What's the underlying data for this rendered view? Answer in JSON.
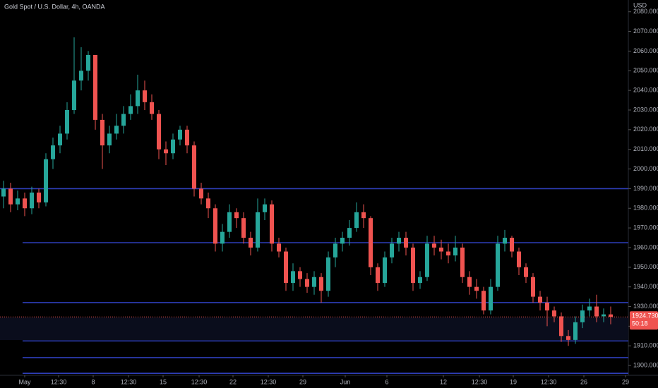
{
  "chart_data": {
    "type": "candlestick",
    "title": "Gold Spot / U.S. Dollar, 4h, OANDA",
    "y_axis_unit": "USD",
    "up_color": "#26a69a",
    "down_color": "#ef5350",
    "level_color": "#2e3eb8",
    "ylim": [
      1895,
      2086
    ],
    "xlim": [
      0,
      89
    ],
    "yticks": [
      {
        "value": 1900,
        "label": "1900.000"
      },
      {
        "value": 1910,
        "label": "1910.000"
      },
      {
        "value": 1920,
        "label": "1920.000"
      },
      {
        "value": 1930,
        "label": "1930.000"
      },
      {
        "value": 1940,
        "label": "1940.000"
      },
      {
        "value": 1950,
        "label": "1950.000"
      },
      {
        "value": 1960,
        "label": "1960.000"
      },
      {
        "value": 1970,
        "label": "1970.000"
      },
      {
        "value": 1980,
        "label": "1980.000"
      },
      {
        "value": 1990,
        "label": "1990.000"
      },
      {
        "value": 2000,
        "label": "2000.000"
      },
      {
        "value": 2010,
        "label": "2010.000"
      },
      {
        "value": 2020,
        "label": "2020.000"
      },
      {
        "value": 2030,
        "label": "2030.000"
      },
      {
        "value": 2040,
        "label": "2040.000"
      },
      {
        "value": 2050,
        "label": "2050.000"
      },
      {
        "value": 2060,
        "label": "2060.000"
      },
      {
        "value": 2070,
        "label": "2070.000"
      },
      {
        "value": 2080,
        "label": "2080.000"
      }
    ],
    "xticks": [
      {
        "value": 3.5,
        "label": "May"
      },
      {
        "value": 8.3,
        "label": "12:30"
      },
      {
        "value": 13.2,
        "label": "8"
      },
      {
        "value": 18.2,
        "label": "12:30"
      },
      {
        "value": 23.1,
        "label": "15"
      },
      {
        "value": 28.2,
        "label": "12:30"
      },
      {
        "value": 33.0,
        "label": "22"
      },
      {
        "value": 38.0,
        "label": "12:30"
      },
      {
        "value": 42.9,
        "label": "29"
      },
      {
        "value": 48.9,
        "label": "Jun"
      },
      {
        "value": 54.8,
        "label": "6"
      },
      {
        "value": 62.8,
        "label": "12"
      },
      {
        "value": 67.9,
        "label": "12:30"
      },
      {
        "value": 72.7,
        "label": "19"
      },
      {
        "value": 77.7,
        "label": "12:30"
      },
      {
        "value": 82.7,
        "label": "26"
      },
      {
        "value": 88.6,
        "label": "29"
      }
    ],
    "open": [
      1986,
      1990,
      1982,
      1985,
      1980,
      1988,
      1983,
      2005,
      2012,
      2018,
      2030,
      2045,
      2050,
      2058,
      2025,
      2012,
      2018,
      2022,
      2028,
      2032,
      2040,
      2034,
      2028,
      2010,
      2008,
      2015,
      2020,
      2012,
      1990,
      1985,
      1980,
      1962,
      1968,
      1978,
      1975,
      1965,
      1960,
      1978,
      1982,
      1962,
      1958,
      1942,
      1948,
      1944,
      1940,
      1945,
      1938,
      1955,
      1962,
      1965,
      1970,
      1978,
      1975,
      1950,
      1942,
      1955,
      1962,
      1965,
      1960,
      1942,
      1945,
      1962,
      1960,
      1958,
      1956,
      1960,
      1945,
      1940,
      1938,
      1928,
      1940,
      1962,
      1965,
      1958,
      1950,
      1945,
      1935,
      1932,
      1928,
      1925,
      1915,
      1913,
      1922,
      1928,
      1930,
      1925,
      1926
    ],
    "high": [
      1994,
      1993,
      1989,
      1988,
      1991,
      1990,
      2008,
      2016,
      2022,
      2034,
      2067,
      2062,
      2060,
      2058,
      2028,
      2022,
      2028,
      2032,
      2038,
      2048,
      2045,
      2038,
      2030,
      2014,
      2018,
      2022,
      2022,
      2014,
      1993,
      1988,
      1982,
      1972,
      1982,
      1980,
      1978,
      1968,
      1985,
      1985,
      1984,
      1965,
      1960,
      1952,
      1950,
      1947,
      1948,
      1947,
      1958,
      1965,
      1968,
      1974,
      1983,
      1982,
      1976,
      1952,
      1958,
      1965,
      1968,
      1968,
      1962,
      1948,
      1966,
      1966,
      1964,
      1962,
      1966,
      1962,
      1948,
      1944,
      1940,
      1944,
      1966,
      1969,
      1966,
      1960,
      1952,
      1947,
      1938,
      1935,
      1930,
      1927,
      1918,
      1925,
      1931,
      1934,
      1936,
      1929,
      1930
    ],
    "low": [
      1980,
      1978,
      1979,
      1976,
      1977,
      1980,
      1981,
      2000,
      2008,
      2015,
      2028,
      2040,
      2045,
      2020,
      2000,
      2008,
      2015,
      2018,
      2025,
      2028,
      2030,
      2025,
      2005,
      2002,
      2005,
      2012,
      2008,
      1986,
      1982,
      1975,
      1958,
      1958,
      1965,
      1970,
      1962,
      1956,
      1958,
      1974,
      1958,
      1955,
      1938,
      1938,
      1940,
      1937,
      1936,
      1932,
      1935,
      1950,
      1958,
      1961,
      1968,
      1970,
      1946,
      1938,
      1940,
      1952,
      1958,
      1956,
      1938,
      1939,
      1943,
      1956,
      1954,
      1952,
      1953,
      1942,
      1936,
      1934,
      1926,
      1926,
      1938,
      1958,
      1955,
      1946,
      1942,
      1932,
      1928,
      1920,
      1922,
      1912,
      1910,
      1911,
      1919,
      1925,
      1922,
      1922,
      1921
    ],
    "close": [
      1990,
      1982,
      1985,
      1980,
      1988,
      1983,
      2005,
      2012,
      2018,
      2030,
      2045,
      2050,
      2058,
      2025,
      2012,
      2018,
      2022,
      2028,
      2032,
      2040,
      2034,
      2028,
      2010,
      2008,
      2015,
      2020,
      2012,
      1990,
      1985,
      1980,
      1962,
      1968,
      1978,
      1975,
      1965,
      1960,
      1978,
      1982,
      1962,
      1958,
      1942,
      1948,
      1944,
      1940,
      1945,
      1938,
      1955,
      1962,
      1965,
      1970,
      1978,
      1975,
      1950,
      1942,
      1955,
      1962,
      1965,
      1960,
      1942,
      1945,
      1962,
      1960,
      1958,
      1956,
      1960,
      1945,
      1940,
      1938,
      1928,
      1940,
      1962,
      1965,
      1958,
      1950,
      1945,
      1935,
      1932,
      1928,
      1925,
      1915,
      1913,
      1922,
      1928,
      1930,
      1925,
      1926,
      1924.73
    ],
    "levels": [
      1990,
      1962.5,
      1932,
      1912.5,
      1904,
      1896
    ],
    "last_price": {
      "value": 1924.73,
      "label": "1924.730"
    },
    "countdown": "50:18"
  }
}
